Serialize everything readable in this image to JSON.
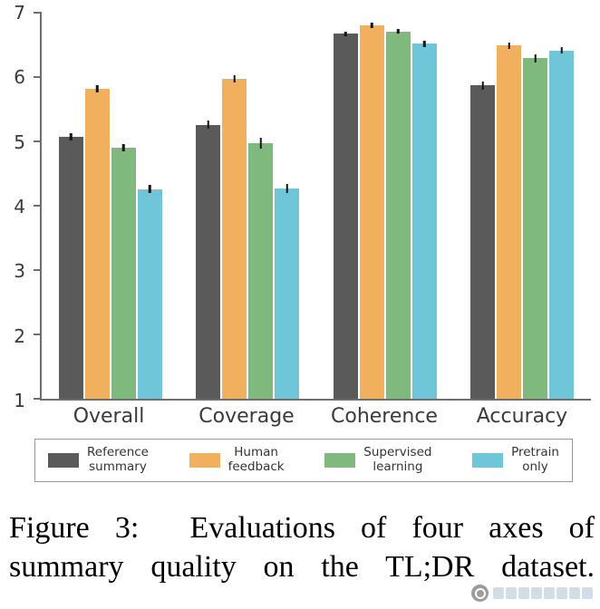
{
  "chart_data": {
    "type": "bar",
    "title": "",
    "categories": [
      "Overall",
      "Coverage",
      "Coherence",
      "Accuracy"
    ],
    "series": [
      {
        "name": "Reference summary",
        "color": "#5a5a5a",
        "values": [
          5.07,
          5.26,
          6.67,
          5.87
        ],
        "errors": [
          0.06,
          0.06,
          0.04,
          0.06
        ]
      },
      {
        "name": "Human feedback",
        "color": "#f0b05e",
        "values": [
          5.82,
          5.97,
          6.8,
          6.49
        ],
        "errors": [
          0.06,
          0.06,
          0.04,
          0.05
        ]
      },
      {
        "name": "Supervised learning",
        "color": "#7fb97e",
        "values": [
          4.9,
          4.97,
          6.71,
          6.29
        ],
        "errors": [
          0.06,
          0.08,
          0.04,
          0.06
        ]
      },
      {
        "name": "Pretrain only",
        "color": "#6ec6d8",
        "values": [
          4.26,
          4.27,
          6.52,
          6.41
        ],
        "errors": [
          0.06,
          0.07,
          0.05,
          0.05
        ]
      }
    ],
    "ylim": [
      1,
      7
    ],
    "yticks": [
      1,
      2,
      3,
      4,
      5,
      6,
      7
    ],
    "grid": false,
    "legend_position": "below",
    "axis_color": "#6e6e6e",
    "error_bar_color": "#141414"
  },
  "legend": {
    "items": [
      {
        "line1": "Reference",
        "line2": "summary"
      },
      {
        "line1": "Human",
        "line2": "feedback"
      },
      {
        "line1": "Supervised",
        "line2": "learning"
      },
      {
        "line1": "Pretrain",
        "line2": "only"
      }
    ]
  },
  "caption": {
    "line1": "Figure 3:  Evaluations of four axes of",
    "line2": "summary quality on the TL;DR dataset."
  }
}
